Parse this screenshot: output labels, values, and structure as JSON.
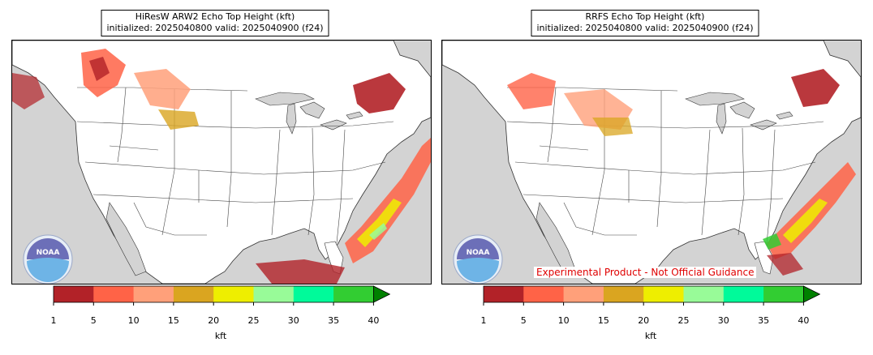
{
  "panels": [
    {
      "title_line1": "HiResW ARW2 Echo Top Height (kft)",
      "title_line2": "initialized: 2025040800 valid: 2025040900 (f24)",
      "logo_text": "NOAA"
    },
    {
      "title_line1": "RRFS Echo Top Height (kft)",
      "title_line2": "initialized: 2025040800 valid: 2025040900 (f24)",
      "logo_text": "NOAA",
      "disclaimer": "Experimental Product - Not Official Guidance"
    }
  ],
  "colorbar": {
    "label": "kft",
    "ticks": [
      "1",
      "5",
      "10",
      "15",
      "20",
      "25",
      "30",
      "35",
      "40"
    ],
    "colors": [
      "#b22228",
      "#ff6347",
      "#ffa07a",
      "#daa520",
      "#eeee00",
      "#98fb98",
      "#00fa9a",
      "#32cd32"
    ],
    "extend_color": "#008000"
  },
  "colors": {
    "land": "#ffffff",
    "ocean": "#d3d3d3",
    "border": "#333333"
  }
}
